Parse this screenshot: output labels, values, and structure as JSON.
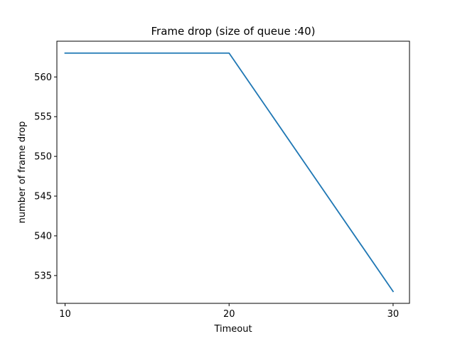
{
  "chart_data": {
    "type": "line",
    "title": "Frame drop (size of queue :40)",
    "xlabel": "Timeout",
    "ylabel": "number of frame drop",
    "x": [
      10,
      20,
      30
    ],
    "series": [
      {
        "values": [
          563,
          563,
          533
        ],
        "color": "#1f77b4"
      }
    ],
    "xlim": [
      9.5,
      31
    ],
    "ylim": [
      531.5,
      564.5
    ],
    "xticks": [
      10,
      20,
      30
    ],
    "yticks": [
      535,
      540,
      545,
      550,
      555,
      560
    ],
    "grid": false,
    "legend": "none"
  }
}
